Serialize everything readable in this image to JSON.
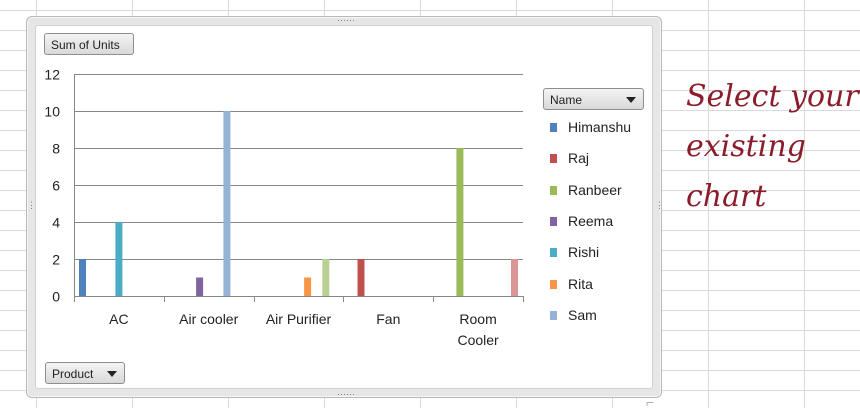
{
  "pivot_buttons": {
    "values_field": "Sum of Units",
    "legend_field": "Name",
    "axis_field": "Product"
  },
  "callout": {
    "line1": "Select your",
    "line2": "existing",
    "line3": "chart"
  },
  "colors": {
    "callout_text": "#8b1c2c",
    "gridline": "#878787"
  },
  "chart_data": {
    "type": "bar",
    "title": "",
    "xlabel": "",
    "ylabel": "",
    "ylim": [
      0,
      12
    ],
    "yticks": [
      0,
      2,
      4,
      6,
      8,
      10,
      12
    ],
    "grid": true,
    "legend_position": "right",
    "categories": [
      "AC",
      "Air cooler",
      "Air Purifier",
      "Fan",
      "Room Cooler"
    ],
    "category_lines": [
      [
        "AC"
      ],
      [
        "Air cooler"
      ],
      [
        "Air Purifier"
      ],
      [
        "Fan"
      ],
      [
        "Room",
        "Cooler"
      ]
    ],
    "series": [
      {
        "name": "Himanshu",
        "color": "#4f81bd",
        "values": [
          2,
          0,
          0,
          0,
          0
        ]
      },
      {
        "name": "Raj",
        "color": "#c0504d",
        "values": [
          0,
          0,
          0,
          2,
          0
        ]
      },
      {
        "name": "Ranbeer",
        "color": "#9bbb59",
        "values": [
          0,
          0,
          0,
          0,
          8
        ]
      },
      {
        "name": "Reema",
        "color": "#8064a2",
        "values": [
          0,
          1,
          0,
          0,
          0
        ]
      },
      {
        "name": "Rishi",
        "color": "#4bacc6",
        "values": [
          4,
          0,
          0,
          0,
          0
        ]
      },
      {
        "name": "Rita",
        "color": "#f79646",
        "values": [
          0,
          0,
          1,
          0,
          0
        ]
      },
      {
        "name": "Sam",
        "color": "#95b3d7",
        "values": [
          0,
          10,
          0,
          0,
          0
        ]
      },
      {
        "name": "",
        "color": "#b9d195",
        "values": [
          0,
          0,
          2,
          0,
          0
        ]
      },
      {
        "name": "",
        "color": "#da9694",
        "values": [
          0,
          0,
          0,
          0,
          2
        ]
      }
    ]
  }
}
